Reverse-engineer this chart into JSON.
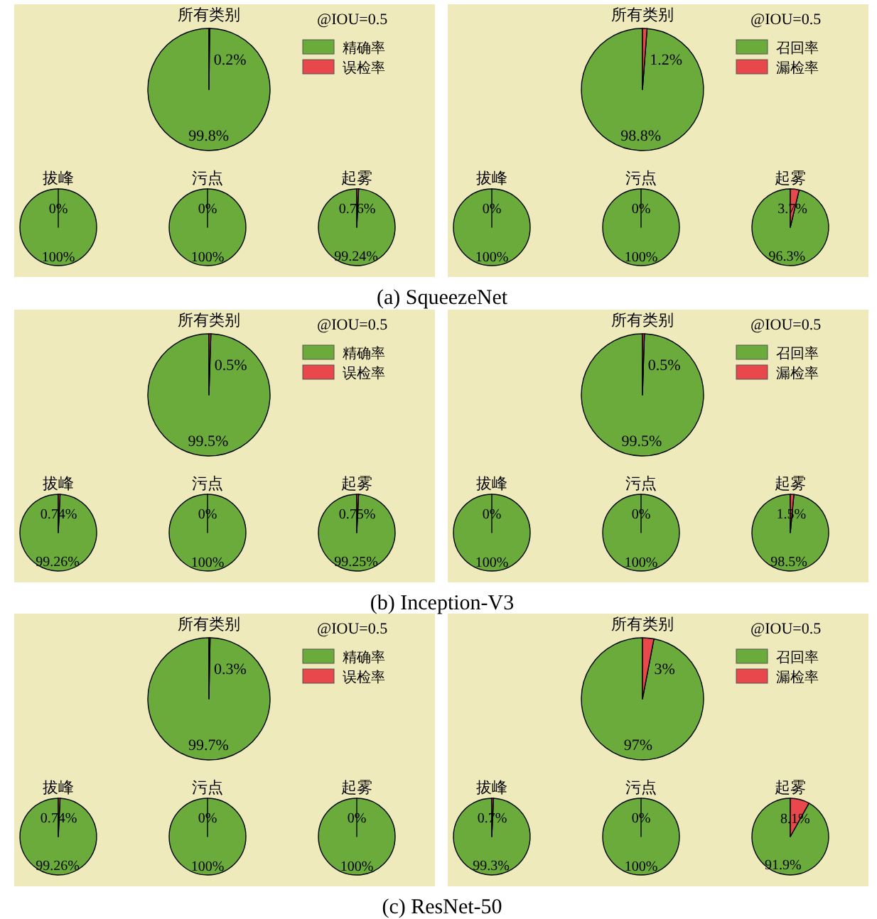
{
  "chart_data": [
    {
      "type": "pie",
      "title": "所有类别",
      "legend_title": "@IOU=0.5",
      "legend": "top right",
      "categories": [
        "精确率",
        "误检率"
      ],
      "values": [
        99.8,
        0.2
      ],
      "colors": [
        "#6aab3c",
        "#e8474b"
      ],
      "value_labels": [
        "99.8%",
        "0.2%"
      ],
      "annotations": [
        "(a) SqueezeNet"
      ]
    },
    {
      "type": "pie",
      "title": "拔峰",
      "categories": [
        null,
        null
      ],
      "values": [
        100,
        0
      ],
      "colors": [
        "#6aab3c",
        "#e8474b"
      ],
      "value_labels": [
        "100%",
        "0%"
      ]
    },
    {
      "type": "pie",
      "title": "污点",
      "categories": [
        null,
        null
      ],
      "values": [
        100,
        0
      ],
      "colors": [
        "#6aab3c",
        "#e8474b"
      ],
      "value_labels": [
        "100%",
        "0%"
      ]
    },
    {
      "type": "pie",
      "title": "起雾",
      "categories": [
        null,
        null
      ],
      "values": [
        99.24,
        0.76
      ],
      "colors": [
        "#6aab3c",
        "#e8474b"
      ],
      "value_labels": [
        "99.24%",
        "0.76%"
      ]
    },
    {
      "type": "pie",
      "title": "所有类别",
      "legend_title": "@IOU=0.5",
      "legend": "top right",
      "categories": [
        "召回率",
        "漏检率"
      ],
      "values": [
        98.8,
        1.2
      ],
      "colors": [
        "#6aab3c",
        "#e8474b"
      ],
      "value_labels": [
        "98.8%",
        "1.2%"
      ]
    },
    {
      "type": "pie",
      "title": "拔峰",
      "categories": [
        null,
        null
      ],
      "values": [
        100,
        0
      ],
      "colors": [
        "#6aab3c",
        "#e8474b"
      ],
      "value_labels": [
        "100%",
        "0%"
      ]
    },
    {
      "type": "pie",
      "title": "污点",
      "categories": [
        null,
        null
      ],
      "values": [
        100,
        0
      ],
      "colors": [
        "#6aab3c",
        "#e8474b"
      ],
      "value_labels": [
        "100%",
        "0%"
      ]
    },
    {
      "type": "pie",
      "title": "起雾",
      "categories": [
        null,
        null
      ],
      "values": [
        96.3,
        3.7
      ],
      "colors": [
        "#6aab3c",
        "#e8474b"
      ],
      "value_labels": [
        "96.3%",
        "3.7%"
      ]
    },
    {
      "type": "pie",
      "title": "所有类别",
      "legend_title": "@IOU=0.5",
      "legend": "top right",
      "categories": [
        "精确率",
        "误检率"
      ],
      "values": [
        99.5,
        0.5
      ],
      "colors": [
        "#6aab3c",
        "#e8474b"
      ],
      "value_labels": [
        "99.5%",
        "0.5%"
      ],
      "annotations": [
        "(b) Inception-V3"
      ]
    },
    {
      "type": "pie",
      "title": "拔峰",
      "categories": [
        null,
        null
      ],
      "values": [
        99.26,
        0.74
      ],
      "colors": [
        "#6aab3c",
        "#e8474b"
      ],
      "value_labels": [
        "99.26%",
        "0.74%"
      ]
    },
    {
      "type": "pie",
      "title": "污点",
      "categories": [
        null,
        null
      ],
      "values": [
        100,
        0
      ],
      "colors": [
        "#6aab3c",
        "#e8474b"
      ],
      "value_labels": [
        "100%",
        "0%"
      ]
    },
    {
      "type": "pie",
      "title": "起雾",
      "categories": [
        null,
        null
      ],
      "values": [
        99.25,
        0.75
      ],
      "colors": [
        "#6aab3c",
        "#e8474b"
      ],
      "value_labels": [
        "99.25%",
        "0.75%"
      ]
    },
    {
      "type": "pie",
      "title": "所有类别",
      "legend_title": "@IOU=0.5",
      "legend": "top right",
      "categories": [
        "召回率",
        "漏检率"
      ],
      "values": [
        99.5,
        0.5
      ],
      "colors": [
        "#6aab3c",
        "#e8474b"
      ],
      "value_labels": [
        "99.5%",
        "0.5%"
      ]
    },
    {
      "type": "pie",
      "title": "拔峰",
      "categories": [
        null,
        null
      ],
      "values": [
        100,
        0
      ],
      "colors": [
        "#6aab3c",
        "#e8474b"
      ],
      "value_labels": [
        "100%",
        "0%"
      ]
    },
    {
      "type": "pie",
      "title": "污点",
      "categories": [
        null,
        null
      ],
      "values": [
        100,
        0
      ],
      "colors": [
        "#6aab3c",
        "#e8474b"
      ],
      "value_labels": [
        "100%",
        "0%"
      ]
    },
    {
      "type": "pie",
      "title": "起雾",
      "categories": [
        null,
        null
      ],
      "values": [
        98.5,
        1.5
      ],
      "colors": [
        "#6aab3c",
        "#e8474b"
      ],
      "value_labels": [
        "98.5%",
        "1.5%"
      ]
    },
    {
      "type": "pie",
      "title": "所有类别",
      "legend_title": "@IOU=0.5",
      "legend": "top right",
      "categories": [
        "精确率",
        "误检率"
      ],
      "values": [
        99.7,
        0.3
      ],
      "colors": [
        "#6aab3c",
        "#e8474b"
      ],
      "value_labels": [
        "99.7%",
        "0.3%"
      ],
      "annotations": [
        "(c) ResNet-50"
      ]
    },
    {
      "type": "pie",
      "title": "拔峰",
      "categories": [
        null,
        null
      ],
      "values": [
        99.26,
        0.74
      ],
      "colors": [
        "#6aab3c",
        "#e8474b"
      ],
      "value_labels": [
        "99.26%",
        "0.74%"
      ]
    },
    {
      "type": "pie",
      "title": "污点",
      "categories": [
        null,
        null
      ],
      "values": [
        100,
        0
      ],
      "colors": [
        "#6aab3c",
        "#e8474b"
      ],
      "value_labels": [
        "100%",
        "0%"
      ]
    },
    {
      "type": "pie",
      "title": "起雾",
      "categories": [
        null,
        null
      ],
      "values": [
        100,
        0
      ],
      "colors": [
        "#6aab3c",
        "#e8474b"
      ],
      "value_labels": [
        "100%",
        "0%"
      ]
    },
    {
      "type": "pie",
      "title": "所有类别",
      "legend_title": "@IOU=0.5",
      "legend": "top right",
      "categories": [
        "召回率",
        "漏检率"
      ],
      "values": [
        97,
        3
      ],
      "colors": [
        "#6aab3c",
        "#e8474b"
      ],
      "value_labels": [
        "97%",
        "3%"
      ]
    },
    {
      "type": "pie",
      "title": "拔峰",
      "categories": [
        null,
        null
      ],
      "values": [
        99.3,
        0.7
      ],
      "colors": [
        "#6aab3c",
        "#e8474b"
      ],
      "value_labels": [
        "99.3%",
        "0.7%"
      ]
    },
    {
      "type": "pie",
      "title": "污点",
      "categories": [
        null,
        null
      ],
      "values": [
        100,
        0
      ],
      "colors": [
        "#6aab3c",
        "#e8474b"
      ],
      "value_labels": [
        "100%",
        "0%"
      ]
    },
    {
      "type": "pie",
      "title": "起雾",
      "categories": [
        null,
        null
      ],
      "values": [
        91.9,
        8.1
      ],
      "colors": [
        "#6aab3c",
        "#e8474b"
      ],
      "value_labels": [
        "91.9%",
        "8.1%"
      ]
    }
  ]
}
